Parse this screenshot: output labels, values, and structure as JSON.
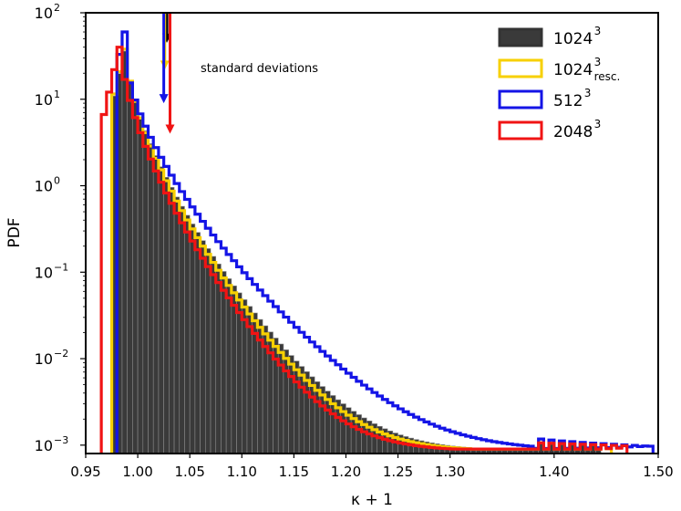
{
  "chart_data": {
    "type": "histogram",
    "xlabel": "κ + 1",
    "ylabel": "PDF",
    "xlim": [
      0.95,
      1.5
    ],
    "ylim": [
      0.0008,
      100
    ],
    "yscale": "log",
    "x_ticks": [
      {
        "value": 0.95,
        "label": "0.95"
      },
      {
        "value": 1.0,
        "label": "1.00"
      },
      {
        "value": 1.05,
        "label": "1.05"
      },
      {
        "value": 1.1,
        "label": "1.10"
      },
      {
        "value": 1.15,
        "label": "1.15"
      },
      {
        "value": 1.2,
        "label": "1.20"
      },
      {
        "value": 1.25,
        "label": "1.25"
      },
      {
        "value": 1.3,
        "label": "1.30"
      },
      {
        "value": 1.4,
        "label": "1.40"
      },
      {
        "value": 1.5,
        "label": "1.50"
      }
    ],
    "y_ticks": [
      {
        "value": 0.001,
        "base": "10",
        "exp": "−3"
      },
      {
        "value": 0.01,
        "base": "10",
        "exp": "−2"
      },
      {
        "value": 0.1,
        "base": "10",
        "exp": "−1"
      },
      {
        "value": 1,
        "base": "10",
        "exp": "0"
      },
      {
        "value": 10,
        "base": "10",
        "exp": "1"
      },
      {
        "value": 100,
        "base": "10",
        "exp": "2"
      }
    ],
    "annotation": "standard deviations",
    "legend_position": "top-right",
    "legend": [
      {
        "base": "1024",
        "sup": "3",
        "sub": "",
        "color": "#333333",
        "fill": "#3a3a3a",
        "style": "filled"
      },
      {
        "base": "1024",
        "sup": "3",
        "sub": "resc.",
        "color": "#f7d002",
        "fill": "none",
        "style": "step"
      },
      {
        "base": "512",
        "sup": "3",
        "sub": "",
        "color": "#1414e6",
        "fill": "none",
        "style": "step"
      },
      {
        "base": "2048",
        "sup": "3",
        "sub": "",
        "color": "#f01414",
        "fill": "none",
        "style": "step"
      }
    ],
    "std_arrows": [
      {
        "series": "1024³",
        "color": "#000000",
        "x": 1.028,
        "tip": 45
      },
      {
        "series": "1024³ resc.",
        "color": "#f7d002",
        "x": 1.026,
        "tip": 22
      },
      {
        "series": "512³",
        "color": "#1414e6",
        "x": 1.025,
        "tip": 9
      },
      {
        "series": "2048³",
        "color": "#f01414",
        "x": 1.031,
        "tip": 4
      }
    ],
    "series_models": [
      {
        "name": "1024³",
        "start": 0.975,
        "width": 0.005,
        "peak_x": 0.985,
        "peak": 36,
        "amp": 36,
        "tail_scale": 1.5,
        "end": 1.445
      },
      {
        "name": "1024³ resc.",
        "start": 0.975,
        "width": 0.005,
        "peak_x": 0.985,
        "peak": 38,
        "amp": 37,
        "tail_scale": 1.55,
        "end": 1.455
      },
      {
        "name": "512³",
        "start": 0.98,
        "width": 0.005,
        "peak_x": 0.985,
        "peak": 60,
        "amp": 30,
        "tail_scale": 1.3,
        "end": 1.495
      },
      {
        "name": "2048³",
        "start": 0.965,
        "width": 0.005,
        "peak_x": 0.98,
        "peak": 40,
        "amp": 40,
        "tail_scale": 1.6,
        "end": 1.47
      }
    ]
  }
}
